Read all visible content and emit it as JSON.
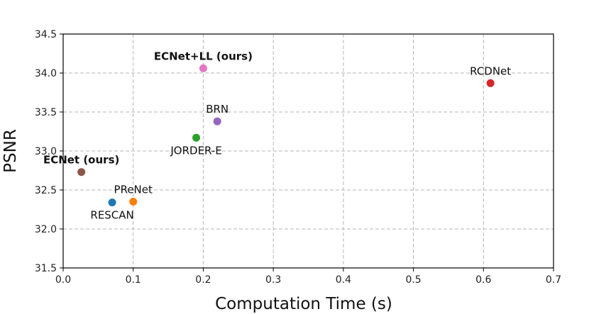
{
  "chart_data": {
    "type": "scatter",
    "xlabel": "Computation Time (s)",
    "ylabel": "PSNR",
    "xlim": [
      0.0,
      0.7
    ],
    "ylim": [
      31.5,
      34.5
    ],
    "xticks": [
      "0.0",
      "0.1",
      "0.2",
      "0.3",
      "0.4",
      "0.5",
      "0.6",
      "0.7"
    ],
    "yticks": [
      "31.5",
      "32.0",
      "32.5",
      "33.0",
      "33.5",
      "34.0",
      "34.5"
    ],
    "grid": true,
    "points": [
      {
        "name": "RCDNet",
        "x": 0.61,
        "y": 33.87,
        "color": "#d62728",
        "bold": false,
        "label_pos": "above"
      },
      {
        "name": "ECNet+LL (ours)",
        "x": 0.2,
        "y": 34.06,
        "color": "#e377c2",
        "bold": true,
        "label_pos": "above"
      },
      {
        "name": "BRN",
        "x": 0.22,
        "y": 33.38,
        "color": "#9467bd",
        "bold": false,
        "label_pos": "above"
      },
      {
        "name": "JORDER-E",
        "x": 0.19,
        "y": 33.17,
        "color": "#2ca02c",
        "bold": false,
        "label_pos": "below"
      },
      {
        "name": "ECNet (ours)",
        "x": 0.026,
        "y": 32.73,
        "color": "#8c564b",
        "bold": true,
        "label_pos": "above"
      },
      {
        "name": "PReNet",
        "x": 0.1,
        "y": 32.35,
        "color": "#ff7f0e",
        "bold": false,
        "label_pos": "above"
      },
      {
        "name": "RESCAN",
        "x": 0.07,
        "y": 32.34,
        "color": "#1f77b4",
        "bold": false,
        "label_pos": "below"
      }
    ]
  }
}
